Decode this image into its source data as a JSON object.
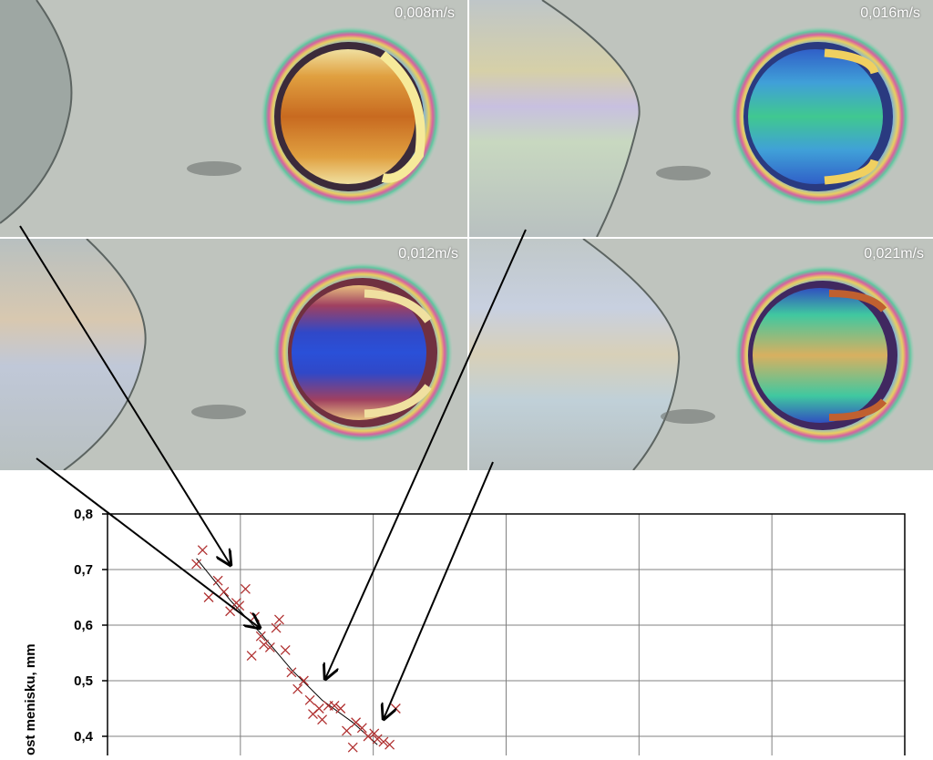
{
  "panels": [
    {
      "label": "0,008m/s",
      "core": "orange"
    },
    {
      "label": "0,016m/s",
      "core": "green"
    },
    {
      "label": "0,012m/s",
      "core": "blue"
    },
    {
      "label": "0,021m/s",
      "core": "yellow-orange"
    }
  ],
  "colors": {
    "background": "#b9c1bb",
    "gridline": "#808080",
    "marker": "#b03030",
    "curve": "#000000",
    "orange": "#c86a20",
    "green": "#40c890",
    "blue": "#2a50d8",
    "yellow-orange": "#d8b060"
  },
  "chart_data": {
    "type": "scatter",
    "ylabel": "ost menisku, mm",
    "yticks": [
      "0,8",
      "0,7",
      "0,6",
      "0,5",
      "0,4"
    ],
    "ylim": [
      0.35,
      0.8
    ],
    "xlim": [
      0.004,
      0.03
    ],
    "grid": true,
    "marker": "x",
    "series": [
      {
        "x": [
          0.0069,
          0.0071,
          0.0073,
          0.0076,
          0.0078,
          0.008,
          0.0082,
          0.0083,
          0.0085,
          0.0087,
          0.0088,
          0.009,
          0.0091,
          0.0093,
          0.0095,
          0.0096,
          0.0098,
          0.01,
          0.0102,
          0.0104,
          0.0106,
          0.0107,
          0.0109,
          0.011,
          0.0112,
          0.0114,
          0.0116,
          0.0118,
          0.012,
          0.0121,
          0.0123,
          0.0125,
          0.0127,
          0.0128,
          0.013,
          0.0132,
          0.0134
        ],
        "y": [
          0.71,
          0.735,
          0.65,
          0.68,
          0.66,
          0.625,
          0.64,
          0.635,
          0.665,
          0.545,
          0.615,
          0.58,
          0.565,
          0.56,
          0.595,
          0.61,
          0.555,
          0.515,
          0.485,
          0.5,
          0.465,
          0.44,
          0.45,
          0.43,
          0.455,
          0.455,
          0.45,
          0.41,
          0.38,
          0.425,
          0.415,
          0.4,
          0.405,
          0.395,
          0.39,
          0.385,
          0.45
        ]
      }
    ],
    "trendline": {
      "x": [
        0.0069,
        0.008,
        0.009,
        0.01,
        0.011,
        0.012,
        0.0128
      ],
      "y": [
        0.72,
        0.645,
        0.585,
        0.52,
        0.465,
        0.425,
        0.385
      ]
    }
  }
}
